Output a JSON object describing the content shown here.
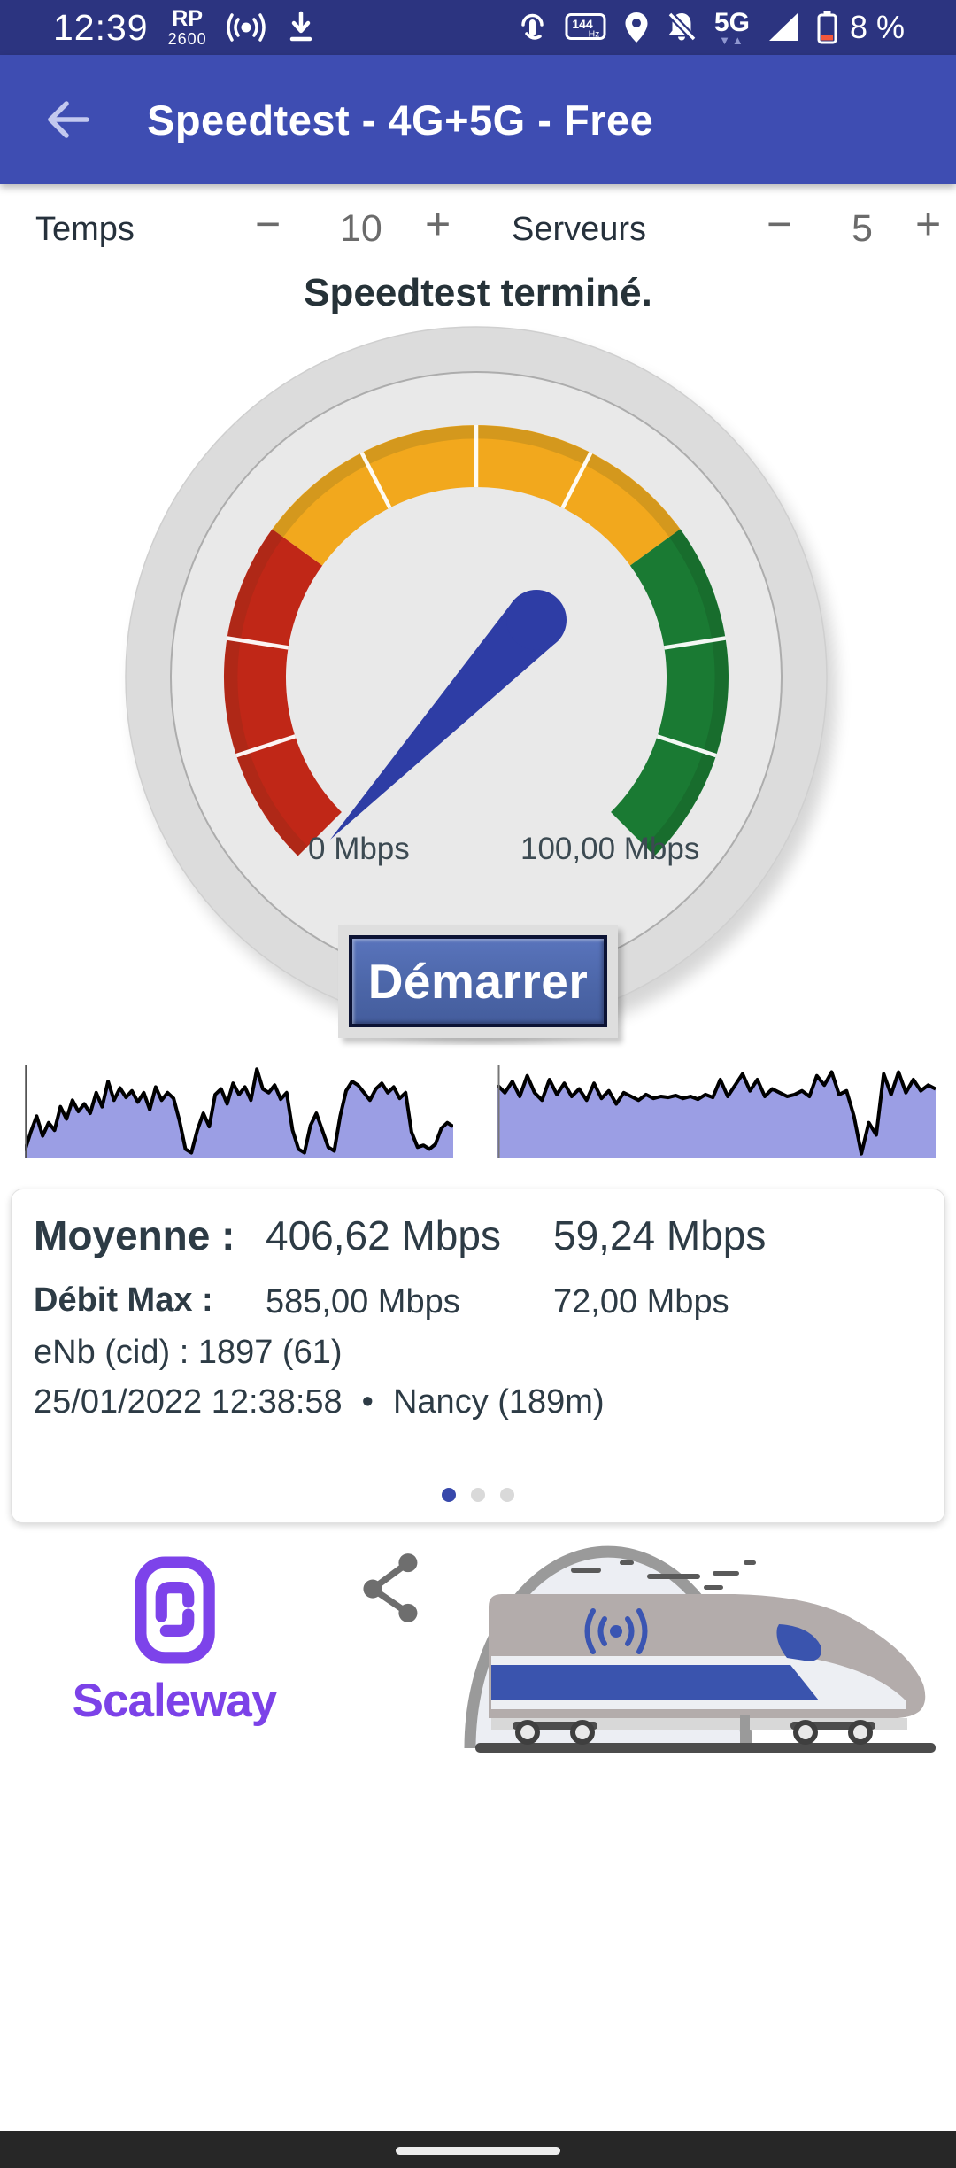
{
  "status_bar": {
    "time": "12:39",
    "operator": "RP",
    "operator_band": "2600",
    "hz_value": "144",
    "hz_unit": "Hz",
    "network": "5G",
    "network_arrows": "▼▲",
    "battery": "8 %"
  },
  "app_bar": {
    "title": "Speedtest - 4G+5G - Free"
  },
  "controls": {
    "temps_label": "Temps",
    "temps_value": "10",
    "serveurs_label": "Serveurs",
    "serveurs_value": "5",
    "minus": "−",
    "plus": "+"
  },
  "status_message": "Speedtest terminé.",
  "gauge": {
    "min_label": "0 Mbps",
    "max_label": "100,00 Mbps",
    "colors": {
      "low": "#c02717",
      "mid": "#f2a81d",
      "high": "#1a7a33",
      "needle": "#2e3da5"
    }
  },
  "start_button_label": "Démarrer",
  "charts": {
    "fill_color": "#9b9ee4",
    "line_color": "#000000",
    "download_points": [
      8,
      28,
      45,
      24,
      38,
      30,
      55,
      42,
      62,
      50,
      58,
      48,
      70,
      55,
      82,
      62,
      75,
      65,
      72,
      60,
      70,
      52,
      76,
      62,
      70,
      64,
      40,
      10,
      6,
      30,
      48,
      34,
      68,
      74,
      58,
      80,
      68,
      76,
      62,
      95,
      74,
      70,
      78,
      63,
      70,
      30,
      10,
      6,
      35,
      48,
      30,
      12,
      8,
      45,
      72,
      82,
      78,
      70,
      62,
      74,
      80,
      70,
      76,
      64,
      70,
      28,
      12,
      14,
      10,
      15,
      32,
      38,
      34
    ],
    "upload_points": [
      78,
      70,
      82,
      66,
      88,
      70,
      62,
      84,
      68,
      80,
      66,
      74,
      62,
      80,
      64,
      72,
      58,
      70,
      66,
      62,
      68,
      64,
      66,
      65,
      67,
      64,
      66,
      63,
      68,
      65,
      84,
      66,
      78,
      90,
      72,
      84,
      66,
      74,
      70,
      66,
      68,
      72,
      66,
      88,
      78,
      92,
      68,
      72,
      45,
      5,
      38,
      25,
      90,
      68,
      92,
      70,
      84,
      72,
      78,
      74
    ]
  },
  "results": {
    "average_label": "Moyenne :",
    "average_download": "406,62 Mbps",
    "average_upload": "59,24 Mbps",
    "max_label": "Débit Max :",
    "max_download": "585,00 Mbps",
    "max_upload": "72,00 Mbps",
    "cell_info": "eNb (cid) : 1897 (61)",
    "timestamp": "25/01/2022 12:38:58",
    "separator": "•",
    "server": "Nancy (189m)"
  },
  "footer": {
    "sponsor": "Scaleway"
  }
}
